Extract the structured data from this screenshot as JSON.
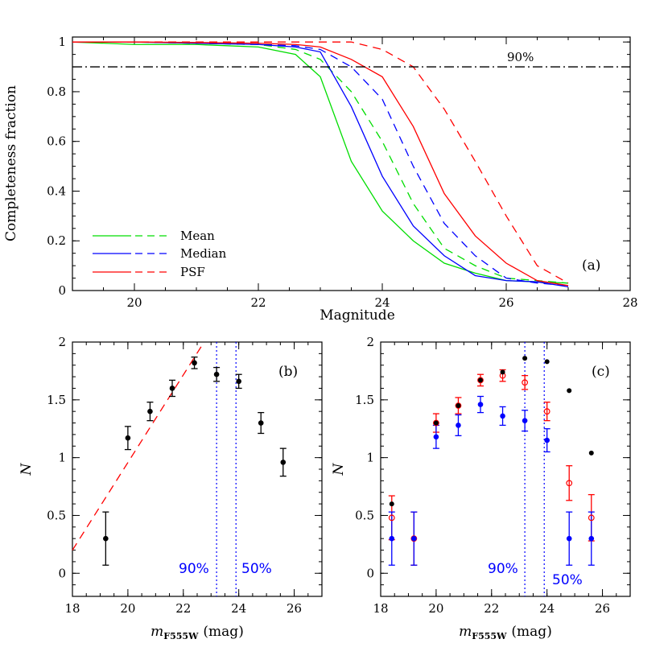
{
  "chart_data": [
    {
      "panel_label": "(a)",
      "type": "line",
      "xlabel": "Magnitude",
      "ylabel": "Completeness fraction",
      "xlim": [
        19,
        28
      ],
      "ylim": [
        0,
        1.02
      ],
      "xticks": [
        "20",
        "22",
        "24",
        "26",
        "28"
      ],
      "yticks": [
        "0",
        "0.2",
        "0.4",
        "0.6",
        "0.8",
        "1"
      ],
      "hline": {
        "y": 0.9,
        "label": "90%",
        "style": "dash-dot"
      },
      "legend": [
        {
          "label": "Mean",
          "color": "#00dd00"
        },
        {
          "label": "Median",
          "color": "#0000ff"
        },
        {
          "label": "PSF",
          "color": "#ff0000"
        }
      ],
      "series": [
        {
          "legend_index": 0,
          "style": "solid",
          "color": "#00dd00",
          "x": [
            19,
            20,
            21,
            22,
            22.6,
            23,
            23.5,
            24,
            24.5,
            25,
            25.5,
            26,
            26.5,
            27
          ],
          "y": [
            1.0,
            0.99,
            0.99,
            0.98,
            0.95,
            0.86,
            0.52,
            0.32,
            0.2,
            0.11,
            0.07,
            0.04,
            0.035,
            0.03
          ]
        },
        {
          "legend_index": 0,
          "style": "dashed",
          "color": "#00dd00",
          "x": [
            19,
            20,
            21,
            22,
            22.6,
            23,
            23.5,
            24,
            24.5,
            25,
            25.5,
            26,
            26.5,
            27
          ],
          "y": [
            1.0,
            1.0,
            0.995,
            0.99,
            0.97,
            0.93,
            0.8,
            0.6,
            0.35,
            0.17,
            0.1,
            0.05,
            0.04,
            0.03
          ]
        },
        {
          "legend_index": 1,
          "style": "solid",
          "color": "#0000ff",
          "x": [
            19,
            20,
            21,
            22,
            22.6,
            23,
            23.5,
            24,
            24.5,
            25,
            25.5,
            26,
            26.5,
            27
          ],
          "y": [
            1.0,
            1.0,
            0.995,
            0.99,
            0.98,
            0.96,
            0.74,
            0.46,
            0.26,
            0.14,
            0.06,
            0.04,
            0.035,
            0.015
          ]
        },
        {
          "legend_index": 1,
          "style": "dashed",
          "color": "#0000ff",
          "x": [
            19,
            20,
            21,
            22,
            22.6,
            23,
            23.5,
            24,
            24.5,
            25,
            25.5,
            26,
            26.5,
            27
          ],
          "y": [
            1.0,
            1.0,
            0.995,
            0.99,
            0.985,
            0.97,
            0.9,
            0.77,
            0.5,
            0.27,
            0.14,
            0.05,
            0.03,
            0.02
          ]
        },
        {
          "legend_index": 2,
          "style": "solid",
          "color": "#ff0000",
          "x": [
            19,
            20,
            21,
            22,
            22.6,
            23,
            23.5,
            24,
            24.5,
            25,
            25.5,
            26,
            26.5,
            27
          ],
          "y": [
            1.0,
            1.0,
            0.998,
            0.995,
            0.99,
            0.98,
            0.93,
            0.86,
            0.66,
            0.39,
            0.22,
            0.11,
            0.04,
            0.02
          ]
        },
        {
          "legend_index": 2,
          "style": "dashed",
          "color": "#ff0000",
          "x": [
            19,
            20,
            21,
            22,
            22.6,
            23,
            23.5,
            24,
            24.5,
            25,
            25.5,
            26,
            26.5,
            27
          ],
          "y": [
            1.0,
            1.0,
            1.0,
            1.0,
            1.0,
            1.0,
            1.0,
            0.97,
            0.9,
            0.73,
            0.52,
            0.3,
            0.1,
            0.03
          ]
        }
      ]
    },
    {
      "panel_label": "(b)",
      "type": "scatter",
      "xlabel_main": "m",
      "xlabel_sub": "F555W",
      "xlabel_unit": "(mag)",
      "ylabel": "N",
      "xlim": [
        18,
        27
      ],
      "ylim": [
        -0.2,
        2
      ],
      "xticks": [
        "18",
        "20",
        "22",
        "24",
        "26"
      ],
      "yticks": [
        "0",
        "0.5",
        "1",
        "1.5",
        "2"
      ],
      "points": {
        "color": "#000000",
        "x": [
          19.2,
          20.0,
          20.8,
          21.6,
          22.4,
          23.2,
          24.0,
          24.8,
          25.6
        ],
        "y": [
          0.3,
          1.17,
          1.4,
          1.6,
          1.82,
          1.72,
          1.66,
          1.3,
          0.96
        ],
        "err": [
          0.23,
          0.1,
          0.08,
          0.07,
          0.05,
          0.06,
          0.06,
          0.09,
          0.12
        ]
      },
      "fit_line": {
        "color": "#ff0000",
        "style": "dashed",
        "x": [
          18,
          22.75
        ],
        "y": [
          0.2,
          2.0
        ]
      },
      "vlines": [
        {
          "x": 23.2,
          "label": "90%"
        },
        {
          "x": 23.9,
          "label": "50%"
        }
      ]
    },
    {
      "panel_label": "(c)",
      "type": "scatter",
      "xlabel_main": "m",
      "xlabel_sub": "F555W",
      "xlabel_unit": "(mag)",
      "ylabel": "N",
      "xlim": [
        18,
        27
      ],
      "ylim": [
        -0.2,
        2
      ],
      "xticks": [
        "18",
        "20",
        "22",
        "24",
        "26"
      ],
      "yticks": [
        "0",
        "0.5",
        "1",
        "1.5",
        "2"
      ],
      "series": [
        {
          "color": "#000000",
          "marker": "filled",
          "x": [
            18.4,
            19.2,
            20.0,
            20.8,
            21.6,
            22.4,
            23.2,
            24.0,
            24.8,
            25.6
          ],
          "y": [
            0.6,
            0.3,
            1.3,
            1.45,
            1.67,
            1.74,
            1.86,
            1.83,
            1.58,
            1.04
          ]
        },
        {
          "color": "#ff0000",
          "marker": "open",
          "x": [
            18.4,
            19.2,
            20.0,
            20.8,
            21.6,
            22.4,
            23.2,
            24.0,
            24.8,
            25.6
          ],
          "y": [
            0.48,
            0.3,
            1.3,
            1.45,
            1.67,
            1.71,
            1.65,
            1.4,
            0.78,
            0.48
          ],
          "err": [
            0.19,
            0.23,
            0.08,
            0.07,
            0.05,
            0.05,
            0.06,
            0.08,
            0.15,
            0.2
          ]
        },
        {
          "color": "#0000ff",
          "marker": "filled",
          "x": [
            18.4,
            19.2,
            20.0,
            20.8,
            21.6,
            22.4,
            23.2,
            24.0,
            24.8,
            25.6
          ],
          "y": [
            0.3,
            0.3,
            1.18,
            1.28,
            1.46,
            1.36,
            1.32,
            1.15,
            0.3,
            0.3
          ],
          "err": [
            0.23,
            0.23,
            0.1,
            0.09,
            0.07,
            0.08,
            0.09,
            0.1,
            0.23,
            0.23
          ]
        }
      ],
      "vlines": [
        {
          "x": 23.2,
          "label": "90%"
        },
        {
          "x": 23.9,
          "label": "50%"
        }
      ]
    }
  ]
}
